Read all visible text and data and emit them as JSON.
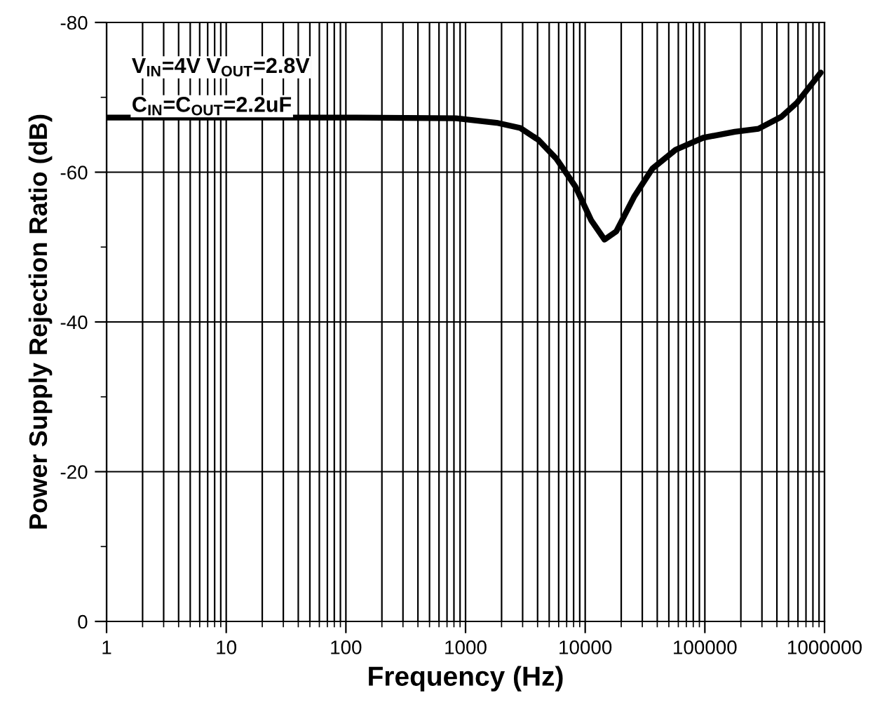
{
  "chart_data": {
    "type": "line",
    "xlabel": "Frequency (Hz)",
    "ylabel": "Power Supply Rejection Ratio (dB)",
    "annotations": [
      "V$_{IN}$=4V V$_{OUT}$=2.8V",
      "C$_{IN}$=C$_{OUT}$=2.2uF"
    ],
    "log": "x",
    "grid": true,
    "marker": "none",
    "line_style": "solid",
    "x": [
      1,
      10,
      100,
      832,
      1820,
      2870,
      4070,
      5750,
      8270,
      11200,
      14500,
      18200,
      25800,
      36500,
      57000,
      97000,
      178000,
      280000,
      436000,
      590000,
      930000
    ],
    "series": [
      {
        "color": "#000000",
        "values": [
          -67.3,
          -67.3,
          -67.3,
          -67.2,
          -66.6,
          -65.9,
          -64.3,
          -61.8,
          -58.1,
          -53.6,
          -51.0,
          -52.1,
          -56.8,
          -60.5,
          -63.0,
          -64.6,
          -65.4,
          -65.8,
          -67.4,
          -69.3,
          -73.3
        ]
      }
    ],
    "xlim": [
      1,
      1000000
    ],
    "xticks": [
      1,
      10,
      100,
      1000,
      10000,
      100000,
      1000000
    ],
    "ylim": [
      0,
      -80
    ],
    "yticks": [
      {
        "value": -80,
        "label": "-80"
      },
      {
        "value": -60,
        "label": "-60"
      },
      {
        "value": -40,
        "label": "-40"
      },
      {
        "value": -20,
        "label": "-20"
      },
      0
    ]
  }
}
